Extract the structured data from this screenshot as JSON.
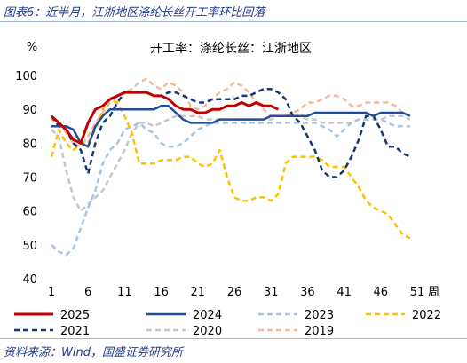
{
  "figure_title": "图表6：近半月，江浙地区涤纶长丝开工率环比回落",
  "source": "资料来源：Wind，国盛证券研究所",
  "chart_data": {
    "type": "line",
    "title": "开工率：涤纶长丝：江浙地区",
    "ylabel": "%",
    "xlabel": "周",
    "ylim": [
      40,
      100
    ],
    "xlim": [
      1,
      51
    ],
    "yticks": [
      40,
      50,
      60,
      70,
      80,
      90,
      100
    ],
    "xticks": [
      1,
      6,
      11,
      16,
      21,
      26,
      31,
      36,
      41,
      46,
      51
    ],
    "grid": false,
    "legend_position": "bottom",
    "series": [
      {
        "name": "2025",
        "color": "#c00000",
        "dash": "solid",
        "width": 3,
        "x": [
          1,
          2,
          3,
          4,
          5,
          6,
          7,
          8,
          9,
          10,
          11,
          12,
          13,
          14,
          15,
          16,
          17,
          18,
          19,
          20,
          21,
          22,
          23,
          24,
          25,
          26,
          27,
          28,
          29,
          30,
          31,
          32
        ],
        "y": [
          88,
          86,
          84,
          81,
          80,
          86,
          90,
          91,
          93,
          94,
          95,
          95,
          95,
          95,
          94,
          94,
          93,
          91,
          90,
          90,
          89,
          89,
          90,
          90,
          91,
          91,
          92,
          91,
          92,
          91,
          91,
          90
        ]
      },
      {
        "name": "2024",
        "color": "#1f4e96",
        "dash": "solid",
        "width": 2.5,
        "x": [
          1,
          2,
          3,
          4,
          5,
          6,
          7,
          8,
          9,
          10,
          11,
          12,
          13,
          14,
          15,
          16,
          17,
          18,
          19,
          20,
          21,
          22,
          23,
          24,
          25,
          26,
          27,
          28,
          29,
          30,
          31,
          32,
          33,
          34,
          35,
          36,
          37,
          38,
          39,
          40,
          41,
          42,
          43,
          44,
          45,
          46,
          47,
          48,
          49,
          50
        ],
        "y": [
          85,
          85,
          85,
          84,
          80,
          79,
          85,
          88,
          90,
          90,
          90,
          90,
          90,
          90,
          90,
          91,
          91,
          89,
          87,
          86,
          86,
          86,
          86,
          87,
          87,
          87,
          87,
          87,
          87,
          87,
          88,
          88,
          88,
          88,
          88,
          88,
          89,
          89,
          89,
          89,
          89,
          89,
          89,
          89,
          88,
          89,
          89,
          89,
          89,
          88
        ]
      },
      {
        "name": "2023",
        "color": "#a6c4e6",
        "dash": "dashed",
        "width": 2.5,
        "x": [
          1,
          2,
          3,
          4,
          5,
          6,
          7,
          8,
          9,
          10,
          11,
          12,
          13,
          14,
          15,
          16,
          17,
          18,
          19,
          20,
          21,
          22,
          23,
          24,
          25,
          26,
          27,
          28,
          29,
          30,
          31,
          32,
          33,
          34,
          35,
          36,
          37,
          38,
          39,
          40,
          41,
          42,
          43,
          44,
          45,
          46,
          47,
          48,
          49,
          50
        ],
        "y": [
          50,
          48,
          47,
          49,
          55,
          61,
          66,
          74,
          78,
          80,
          84,
          85,
          86,
          84,
          83,
          80,
          79,
          79,
          80,
          82,
          84,
          85,
          86,
          86,
          86,
          86,
          86,
          86,
          86,
          86,
          86,
          86,
          86,
          86,
          86,
          86,
          86,
          85,
          84,
          82,
          84,
          86,
          87,
          87,
          87,
          87,
          86,
          85,
          85,
          85
        ]
      },
      {
        "name": "2022",
        "color": "#ffc000",
        "dash": "dashed",
        "width": 2.5,
        "x": [
          1,
          2,
          3,
          4,
          5,
          6,
          7,
          8,
          9,
          10,
          11,
          12,
          13,
          14,
          15,
          16,
          17,
          18,
          19,
          20,
          21,
          22,
          23,
          24,
          25,
          26,
          27,
          28,
          29,
          30,
          31,
          32,
          33,
          34,
          35,
          36,
          37,
          38,
          39,
          40,
          41,
          42,
          43,
          44,
          45,
          46,
          47,
          48,
          49,
          50
        ],
        "y": [
          76,
          84,
          80,
          78,
          80,
          80,
          84,
          90,
          93,
          92,
          88,
          83,
          74,
          74,
          74,
          75,
          75,
          75,
          76,
          76,
          74,
          73,
          74,
          78,
          70,
          64,
          63,
          63,
          64,
          64,
          63,
          65,
          74,
          76,
          76,
          76,
          76,
          75,
          73,
          73,
          73,
          70,
          67,
          63,
          61,
          60,
          59,
          56,
          53,
          52
        ]
      },
      {
        "name": "2021",
        "color": "#17366f",
        "dash": "dashed",
        "width": 2.5,
        "x": [
          1,
          2,
          3,
          4,
          5,
          6,
          7,
          8,
          9,
          10,
          11,
          12,
          13,
          14,
          15,
          16,
          17,
          18,
          19,
          20,
          21,
          22,
          23,
          24,
          25,
          26,
          27,
          28,
          29,
          30,
          31,
          32,
          33,
          34,
          35,
          36,
          37,
          38,
          39,
          40,
          41,
          42,
          43,
          44,
          45,
          46,
          47,
          48,
          49,
          50
        ],
        "y": [
          88,
          85,
          84,
          80,
          78,
          71,
          80,
          86,
          88,
          92,
          95,
          95,
          95,
          95,
          94,
          94,
          95,
          95,
          94,
          93,
          92,
          92,
          93,
          93,
          93,
          93,
          94,
          94,
          95,
          96,
          96,
          95,
          93,
          88,
          86,
          82,
          78,
          72,
          70,
          70,
          72,
          76,
          81,
          88,
          88,
          84,
          79,
          79,
          77,
          76
        ]
      },
      {
        "name": "2020",
        "color": "#c7c7c7",
        "dash": "dashed",
        "width": 2.5,
        "x": [
          1,
          2,
          3,
          4,
          5,
          6,
          7,
          8,
          9,
          10,
          11,
          12,
          13,
          14,
          15,
          16,
          17,
          18,
          19,
          20,
          21,
          22,
          23,
          24,
          25,
          26,
          27,
          28,
          29,
          30,
          31,
          32,
          33,
          34,
          35,
          36,
          37,
          38,
          39,
          40,
          41,
          42,
          43,
          44,
          45,
          46,
          47,
          48,
          49,
          50
        ],
        "y": [
          84,
          82,
          72,
          64,
          60,
          62,
          64,
          66,
          70,
          74,
          78,
          83,
          86,
          86,
          85,
          86,
          87,
          88,
          88,
          88,
          88,
          87,
          87,
          87,
          87,
          87,
          87,
          87,
          87,
          87,
          87,
          88,
          88,
          88,
          88,
          87,
          87,
          86,
          86,
          86,
          86,
          86,
          87,
          87,
          87,
          87,
          88,
          88,
          88,
          87
        ]
      },
      {
        "name": "2019",
        "color": "#f4b89a",
        "dash": "dashed",
        "width": 2.5,
        "x": [
          1,
          2,
          3,
          4,
          5,
          6,
          7,
          8,
          9,
          10,
          11,
          12,
          13,
          14,
          15,
          16,
          17,
          18,
          19,
          20,
          21,
          22,
          23,
          24,
          25,
          26,
          27,
          28,
          29,
          30,
          31,
          32,
          33,
          34,
          35,
          36,
          37,
          38,
          39,
          40,
          41,
          42,
          43,
          44,
          45,
          46,
          47,
          48,
          49,
          50
        ],
        "y": [
          87,
          86,
          83,
          80,
          79,
          82,
          86,
          89,
          92,
          94,
          95,
          96,
          98,
          99,
          97,
          96,
          98,
          97,
          95,
          91,
          90,
          91,
          93,
          95,
          96,
          98,
          97,
          95,
          92,
          90,
          88,
          88,
          88,
          89,
          90,
          92,
          92,
          93,
          94,
          94,
          93,
          91,
          91,
          92,
          92,
          92,
          92,
          91,
          89,
          88
        ]
      }
    ],
    "legend": [
      "2025",
      "2024",
      "2023",
      "2022",
      "2021",
      "2020",
      "2019"
    ]
  }
}
